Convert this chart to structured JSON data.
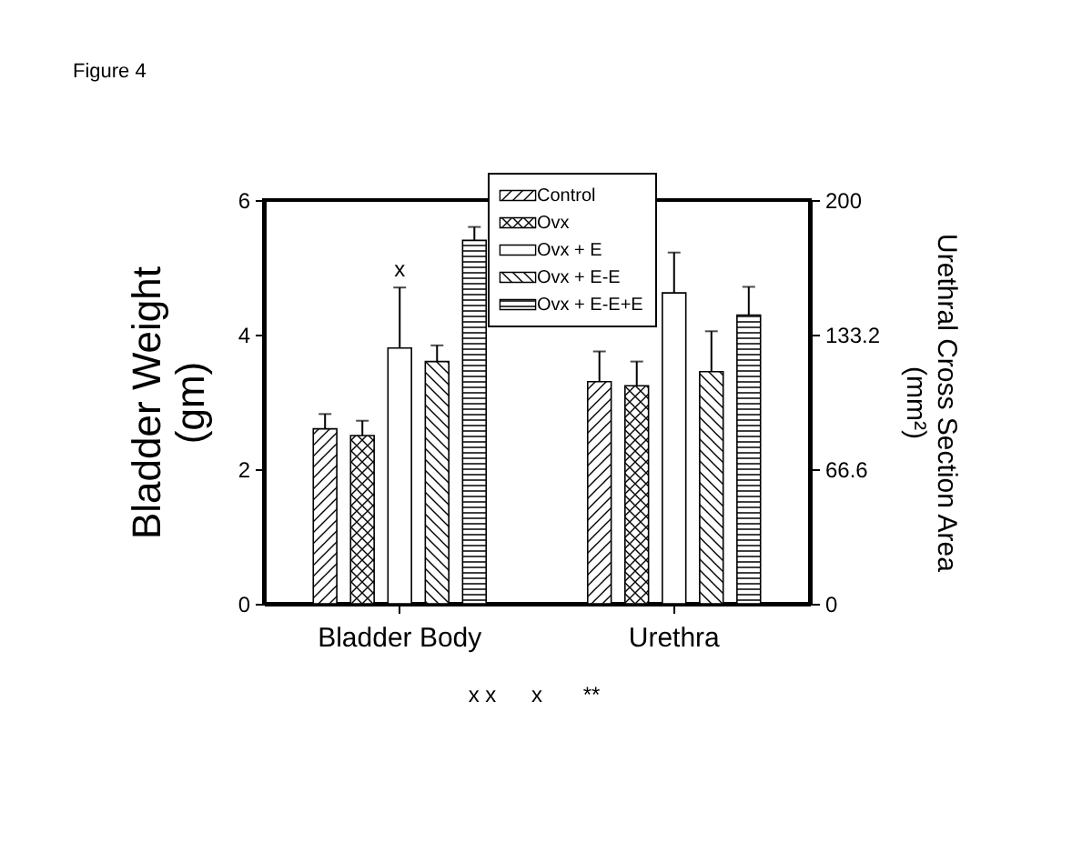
{
  "chart_data": {
    "type": "bar",
    "title": "Figure 4",
    "ylabel": "Bladder  Weight\n(gm)",
    "y2label": "Urethral Cross Section Area\n(mm²)",
    "categories": [
      "Bladder Body",
      "Urethra"
    ],
    "ylim": [
      0,
      6
    ],
    "yticks": [
      0,
      2,
      4,
      6
    ],
    "y2lim": [
      0,
      200
    ],
    "y2ticks": [
      0,
      66.6,
      133.2,
      200
    ],
    "series": [
      {
        "name": "Control",
        "color": "#000000",
        "values": [
          2.6,
          null
        ],
        "errors": [
          [
            2.6,
            2.82
          ],
          null
        ]
      },
      {
        "name": "Ovx",
        "color": "#000000",
        "values": [
          2.5,
          null
        ],
        "errors": [
          [
            2.5,
            2.72
          ],
          null
        ]
      },
      {
        "name": "Ovx + E",
        "color": "#ffffff",
        "values": [
          3.8,
          null
        ],
        "errors": [
          [
            3.8,
            4.7
          ],
          null
        ]
      },
      {
        "name": "Ovx + E-E",
        "color": "#000000",
        "values": [
          3.6,
          null
        ],
        "errors": [
          [
            3.6,
            3.84
          ],
          null
        ]
      },
      {
        "name": "Ovx + E-E+E",
        "color": "#000000",
        "values": [
          5.4,
          null
        ],
        "errors": [
          [
            5.4,
            5.6
          ],
          null
        ]
      },
      {
        "color": "#000000",
        "axis": "y2",
        "values": [
          null,
          110
        ],
        "errors": [
          null,
          [
            110,
            125
          ]
        ]
      },
      {
        "color": "#000000",
        "axis": "y2",
        "values": [
          null,
          108
        ],
        "errors": [
          null,
          [
            108,
            120
          ]
        ]
      },
      {
        "color": "#ffffff",
        "axis": "y2",
        "values": [
          null,
          154
        ],
        "errors": [
          null,
          [
            154,
            174
          ]
        ]
      },
      {
        "color": "#000000",
        "axis": "y2",
        "values": [
          null,
          115
        ],
        "errors": [
          null,
          [
            115,
            135
          ]
        ]
      },
      {
        "color": "#000000",
        "axis": "y2",
        "values": [
          null,
          143
        ],
        "errors": [
          null,
          [
            143,
            157
          ]
        ]
      }
    ],
    "annotations": [
      {
        "text": "x",
        "x": "Bladder Body",
        "y": 4.7
      },
      "x x",
      "x",
      "**"
    ],
    "legend": "top",
    "grid": false
  }
}
